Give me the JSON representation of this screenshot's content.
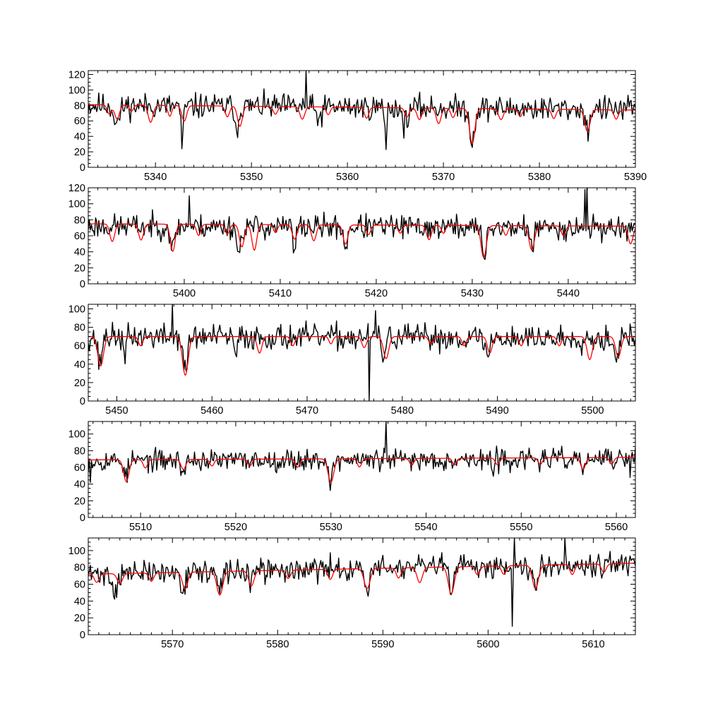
{
  "colors": {
    "observed": "#000000",
    "model": "#ff0000",
    "background": "#ffffff"
  },
  "chart_data": [
    {
      "type": "line",
      "title": "",
      "xlabel": "",
      "ylabel": "",
      "xlim": [
        5333,
        5390
      ],
      "ylim": [
        0,
        125
      ],
      "xticks": [
        5340,
        5350,
        5360,
        5370,
        5380,
        5390
      ],
      "yticks": [
        0,
        20,
        40,
        60,
        80,
        100,
        120
      ],
      "grid": false,
      "series": [
        {
          "role": "observed",
          "color": "#000000",
          "noise": 14,
          "seed": 11,
          "baseline": [
            [
              5333,
              80
            ],
            [
              5390,
              75
            ]
          ],
          "features": [
            [
              5336.0,
              22,
              0.3
            ],
            [
              5342.8,
              50,
              0.12
            ],
            [
              5348.5,
              35,
              0.15
            ],
            [
              5364.0,
              48,
              0.1
            ],
            [
              5373.0,
              42,
              0.25
            ],
            [
              5385.0,
              30,
              0.2
            ],
            [
              5357.0,
              15,
              0.3
            ],
            [
              5366.0,
              20,
              0.3
            ]
          ],
          "spikes": [
            [
              5355.7,
              125
            ],
            [
              5342.8,
              24
            ],
            [
              5364.0,
              23
            ]
          ]
        },
        {
          "role": "model",
          "color": "#ff0000",
          "baseline": [
            [
              5333,
              81
            ],
            [
              5390,
              74
            ]
          ],
          "lines": [
            [
              5335.2,
              12,
              0.22
            ],
            [
              5336.0,
              18,
              0.25
            ],
            [
              5337.5,
              8,
              0.2
            ],
            [
              5339.5,
              22,
              0.25
            ],
            [
              5341.5,
              14,
              0.2
            ],
            [
              5343.0,
              20,
              0.25
            ],
            [
              5347.5,
              14,
              0.22
            ],
            [
              5348.8,
              26,
              0.25
            ],
            [
              5352.5,
              10,
              0.22
            ],
            [
              5355.3,
              16,
              0.25
            ],
            [
              5358.0,
              10,
              0.2
            ],
            [
              5362.0,
              14,
              0.22
            ],
            [
              5366.2,
              12,
              0.22
            ],
            [
              5367.5,
              15,
              0.25
            ],
            [
              5369.5,
              20,
              0.25
            ],
            [
              5371.0,
              12,
              0.22
            ],
            [
              5373.0,
              45,
              0.28
            ],
            [
              5376.0,
              14,
              0.25
            ],
            [
              5378.0,
              10,
              0.2
            ],
            [
              5381.5,
              12,
              0.22
            ],
            [
              5385.0,
              28,
              0.28
            ],
            [
              5388.0,
              12,
              0.22
            ]
          ]
        }
      ]
    },
    {
      "type": "line",
      "title": "",
      "xlabel": "",
      "ylabel": "",
      "xlim": [
        5390,
        5447
      ],
      "ylim": [
        0,
        120
      ],
      "xticks": [
        5400,
        5410,
        5420,
        5430,
        5440
      ],
      "yticks": [
        0,
        20,
        40,
        60,
        80,
        100,
        120
      ],
      "grid": false,
      "series": [
        {
          "role": "observed",
          "color": "#000000",
          "noise": 13,
          "seed": 23,
          "baseline": [
            [
              5390,
              72
            ],
            [
              5447,
              70
            ]
          ],
          "features": [
            [
              5398.8,
              30,
              0.2
            ],
            [
              5405.7,
              35,
              0.2
            ],
            [
              5411.5,
              40,
              0.12
            ],
            [
              5416.8,
              25,
              0.2
            ],
            [
              5431.2,
              40,
              0.2
            ],
            [
              5436.3,
              25,
              0.2
            ]
          ],
          "spikes": [
            [
              5442.0,
              122
            ],
            [
              5441.7,
              118
            ],
            [
              5400.5,
              110
            ]
          ]
        },
        {
          "role": "model",
          "color": "#ff0000",
          "baseline": [
            [
              5390,
              75
            ],
            [
              5447,
              72
            ]
          ],
          "lines": [
            [
              5392.5,
              22,
              0.25
            ],
            [
              5395.5,
              20,
              0.25
            ],
            [
              5398.8,
              34,
              0.25
            ],
            [
              5401.5,
              14,
              0.22
            ],
            [
              5404.5,
              12,
              0.22
            ],
            [
              5406.0,
              28,
              0.25
            ],
            [
              5407.3,
              32,
              0.25
            ],
            [
              5409.5,
              10,
              0.2
            ],
            [
              5411.5,
              18,
              0.25
            ],
            [
              5413.5,
              20,
              0.25
            ],
            [
              5416.8,
              24,
              0.25
            ],
            [
              5419.2,
              12,
              0.22
            ],
            [
              5422.5,
              10,
              0.22
            ],
            [
              5425.5,
              18,
              0.25
            ],
            [
              5427.0,
              10,
              0.2
            ],
            [
              5431.2,
              40,
              0.28
            ],
            [
              5433.5,
              12,
              0.22
            ],
            [
              5436.2,
              30,
              0.28
            ],
            [
              5439.5,
              12,
              0.22
            ],
            [
              5446.5,
              22,
              0.25
            ]
          ]
        }
      ]
    },
    {
      "type": "line",
      "title": "",
      "xlabel": "",
      "ylabel": "",
      "xlim": [
        5447,
        5504.5
      ],
      "ylim": [
        0,
        105
      ],
      "xticks": [
        5450,
        5460,
        5470,
        5480,
        5490,
        5500
      ],
      "yticks": [
        0,
        20,
        40,
        60,
        80,
        100
      ],
      "grid": false,
      "series": [
        {
          "role": "observed",
          "color": "#000000",
          "noise": 12,
          "seed": 37,
          "baseline": [
            [
              5447,
              70
            ],
            [
              5504.5,
              68
            ]
          ],
          "features": [
            [
              5448.2,
              30,
              0.2
            ],
            [
              5450.8,
              30,
              0.12
            ],
            [
              5457.2,
              40,
              0.22
            ],
            [
              5462.5,
              30,
              0.12
            ],
            [
              5478.0,
              20,
              0.2
            ],
            [
              5489.0,
              22,
              0.2
            ],
            [
              5502.5,
              20,
              0.2
            ]
          ],
          "spikes": [
            [
              5476.5,
              0
            ],
            [
              5455.8,
              105
            ],
            [
              5477.2,
              98
            ]
          ]
        },
        {
          "role": "model",
          "color": "#ff0000",
          "baseline": [
            [
              5447,
              70
            ],
            [
              5504.5,
              70
            ]
          ],
          "lines": [
            [
              5448.3,
              32,
              0.3
            ],
            [
              5452.5,
              10,
              0.22
            ],
            [
              5457.2,
              42,
              0.3
            ],
            [
              5465.0,
              18,
              0.25
            ],
            [
              5468.5,
              10,
              0.22
            ],
            [
              5472.5,
              8,
              0.2
            ],
            [
              5476.0,
              12,
              0.25
            ],
            [
              5478.3,
              24,
              0.28
            ],
            [
              5483.0,
              8,
              0.22
            ],
            [
              5486.5,
              10,
              0.22
            ],
            [
              5489.2,
              18,
              0.25
            ],
            [
              5492.5,
              10,
              0.22
            ],
            [
              5496.5,
              10,
              0.22
            ],
            [
              5499.7,
              25,
              0.28
            ],
            [
              5502.7,
              22,
              0.28
            ]
          ]
        }
      ]
    },
    {
      "type": "line",
      "title": "",
      "xlabel": "",
      "ylabel": "",
      "xlim": [
        5504.5,
        5562
      ],
      "ylim": [
        0,
        115
      ],
      "xticks": [
        5510,
        5520,
        5530,
        5540,
        5550,
        5560
      ],
      "yticks": [
        0,
        20,
        40,
        60,
        80,
        100
      ],
      "grid": false,
      "series": [
        {
          "role": "observed",
          "color": "#000000",
          "noise": 11,
          "seed": 53,
          "baseline": [
            [
              5504.5,
              68
            ],
            [
              5562,
              70
            ]
          ],
          "features": [
            [
              5508.5,
              18,
              0.2
            ],
            [
              5514.5,
              15,
              0.2
            ],
            [
              5530.0,
              25,
              0.22
            ],
            [
              5547.0,
              20,
              0.12
            ],
            [
              5556.5,
              12,
              0.2
            ]
          ],
          "spikes": [
            [
              5535.8,
              116
            ],
            [
              5504.7,
              42
            ],
            [
              5561.5,
              48
            ]
          ]
        },
        {
          "role": "model",
          "color": "#ff0000",
          "baseline": [
            [
              5504.5,
              69
            ],
            [
              5562,
              72
            ]
          ],
          "lines": [
            [
              5508.5,
              26,
              0.28
            ],
            [
              5510.5,
              10,
              0.22
            ],
            [
              5514.5,
              12,
              0.25
            ],
            [
              5517.5,
              8,
              0.22
            ],
            [
              5521.5,
              8,
              0.22
            ],
            [
              5526.5,
              10,
              0.22
            ],
            [
              5530.0,
              28,
              0.3
            ],
            [
              5533.0,
              10,
              0.22
            ],
            [
              5538.5,
              8,
              0.22
            ],
            [
              5543.0,
              8,
              0.22
            ],
            [
              5547.5,
              8,
              0.22
            ],
            [
              5552.0,
              8,
              0.22
            ],
            [
              5556.5,
              14,
              0.25
            ],
            [
              5559.5,
              8,
              0.22
            ]
          ]
        }
      ]
    },
    {
      "type": "line",
      "title": "",
      "xlabel": "",
      "ylabel": "",
      "xlim": [
        5562,
        5614
      ],
      "ylim": [
        0,
        115
      ],
      "xticks": [
        5570,
        5580,
        5590,
        5600,
        5610
      ],
      "yticks": [
        0,
        20,
        40,
        60,
        80,
        100
      ],
      "grid": false,
      "series": [
        {
          "role": "observed",
          "color": "#000000",
          "noise": 12,
          "seed": 71,
          "baseline": [
            [
              5562,
              72
            ],
            [
              5614,
              85
            ]
          ],
          "features": [
            [
              5564.5,
              25,
              0.2
            ],
            [
              5571.0,
              20,
              0.2
            ],
            [
              5574.5,
              25,
              0.22
            ],
            [
              5577.5,
              15,
              0.2
            ],
            [
              5588.5,
              25,
              0.22
            ],
            [
              5596.5,
              40,
              0.15
            ],
            [
              5604.5,
              25,
              0.2
            ]
          ],
          "spikes": [
            [
              5602.3,
              10
            ],
            [
              5602.5,
              115
            ],
            [
              5607.3,
              115
            ]
          ]
        },
        {
          "role": "model",
          "color": "#ff0000",
          "baseline": [
            [
              5562,
              72
            ],
            [
              5614,
              85
            ]
          ],
          "lines": [
            [
              5562.8,
              10,
              0.22
            ],
            [
              5565.0,
              12,
              0.25
            ],
            [
              5568.0,
              10,
              0.22
            ],
            [
              5571.2,
              20,
              0.25
            ],
            [
              5574.5,
              28,
              0.28
            ],
            [
              5577.5,
              18,
              0.25
            ],
            [
              5581.0,
              10,
              0.22
            ],
            [
              5585.0,
              12,
              0.22
            ],
            [
              5588.5,
              24,
              0.28
            ],
            [
              5591.5,
              12,
              0.22
            ],
            [
              5593.5,
              18,
              0.25
            ],
            [
              5596.5,
              32,
              0.28
            ],
            [
              5599.0,
              10,
              0.22
            ],
            [
              5601.5,
              10,
              0.22
            ],
            [
              5604.5,
              28,
              0.28
            ],
            [
              5608.0,
              12,
              0.22
            ],
            [
              5611.0,
              10,
              0.22
            ]
          ]
        }
      ]
    }
  ]
}
